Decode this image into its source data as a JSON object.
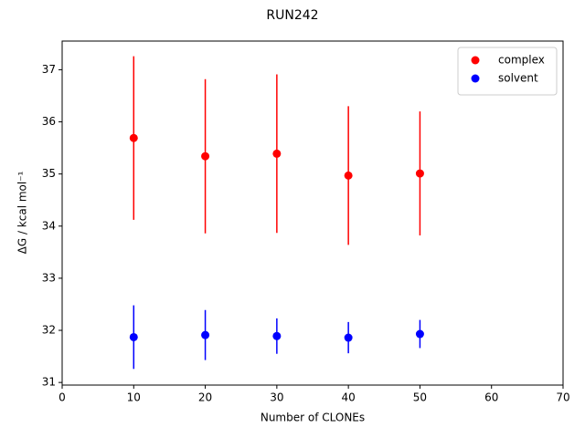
{
  "chart_data": {
    "type": "scatter",
    "title": "RUN242",
    "x_label": "Number of CLONEs",
    "y_label": "ΔG / kcal mol⁻¹",
    "x": [
      10,
      20,
      30,
      40,
      50
    ],
    "series": [
      {
        "name": "complex",
        "color": "#ff0000",
        "values": [
          35.69,
          35.34,
          35.39,
          34.97,
          35.01
        ],
        "errors": [
          1.57,
          1.48,
          1.52,
          1.33,
          1.19
        ]
      },
      {
        "name": "solvent",
        "color": "#0000ff",
        "values": [
          31.87,
          31.91,
          31.89,
          31.86,
          31.93
        ],
        "errors": [
          0.61,
          0.48,
          0.34,
          0.3,
          0.27
        ]
      }
    ],
    "xlim": [
      0,
      70
    ],
    "xticks": [
      0,
      10,
      20,
      30,
      40,
      50,
      60,
      70
    ],
    "ylim": [
      30.95,
      37.55
    ],
    "yticks": [
      31,
      32,
      33,
      34,
      35,
      36,
      37
    ],
    "legend": "upper right"
  }
}
